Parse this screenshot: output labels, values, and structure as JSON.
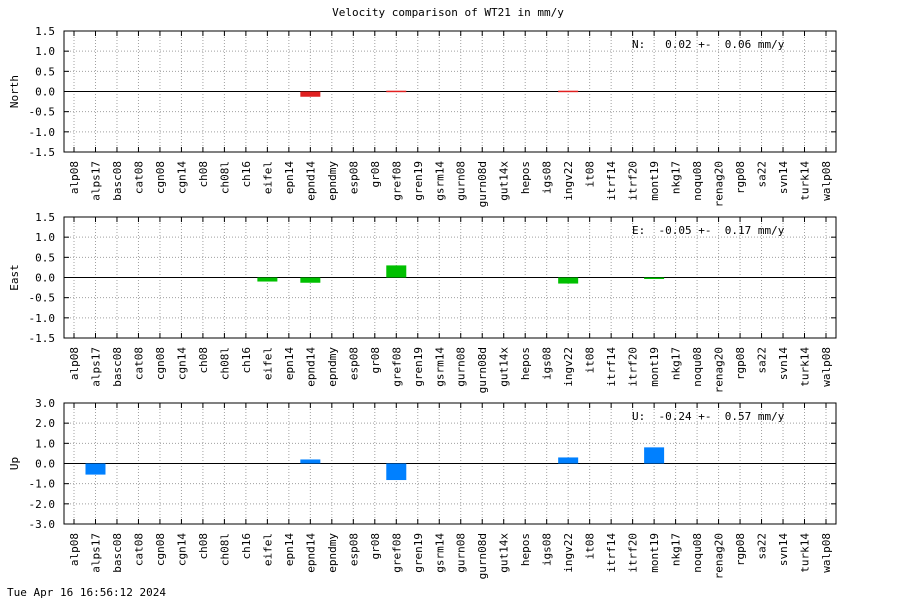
{
  "figure_title": "Velocity comparison of WT21 in mm/y",
  "timestamp": "Tue Apr 16 16:56:12 2024",
  "colors": {
    "north": "#e02020",
    "east": "#00c000",
    "up": "#0080ff",
    "grid": "#a0a0a0",
    "axis": "#000000"
  },
  "chart_data": [
    {
      "type": "bar",
      "ylabel": "North",
      "ylim": [
        -1.5,
        1.5
      ],
      "yticks": [
        "1.5",
        "1.0",
        "0.5",
        "0.0",
        "-0.5",
        "-1.0",
        "-1.5"
      ],
      "ytick_values": [
        1.5,
        1.0,
        0.5,
        0.0,
        -0.5,
        -1.0,
        -1.5
      ],
      "grid": true,
      "stat_text": "N:   0.02 +-  0.06 mm/y",
      "categories": [
        "alp08",
        "alps17",
        "basc08",
        "cat08",
        "cgn08",
        "cgn14",
        "ch08",
        "ch08l",
        "ch16",
        "eifel",
        "epn14",
        "epnd14",
        "epndmy",
        "esp08",
        "gr08",
        "gref08",
        "gren19",
        "gsrm14",
        "gurn08",
        "gurn08d",
        "gut14x",
        "hepos",
        "igs08",
        "ingv22",
        "it08",
        "itrf14",
        "itrf20",
        "mont19",
        "nkg17",
        "noqu08",
        "renag20",
        "rgp08",
        "sa22",
        "svn14",
        "turk14",
        "walp08"
      ],
      "values": [
        0,
        0,
        0,
        0,
        0,
        0,
        0,
        0,
        0,
        0,
        0,
        -0.13,
        0,
        0,
        0,
        0.02,
        0,
        0,
        0,
        0,
        0,
        0,
        0,
        0.02,
        0,
        0,
        0,
        0,
        0,
        0,
        0,
        0,
        0,
        0,
        0,
        0
      ]
    },
    {
      "type": "bar",
      "ylabel": "East",
      "ylim": [
        -1.5,
        1.5
      ],
      "yticks": [
        "1.5",
        "1.0",
        "0.5",
        "0.0",
        "-0.5",
        "-1.0",
        "-1.5"
      ],
      "ytick_values": [
        1.5,
        1.0,
        0.5,
        0.0,
        -0.5,
        -1.0,
        -1.5
      ],
      "grid": true,
      "stat_text": "E:  -0.05 +-  0.17 mm/y",
      "categories": [
        "alp08",
        "alps17",
        "basc08",
        "cat08",
        "cgn08",
        "cgn14",
        "ch08",
        "ch08l",
        "ch16",
        "eifel",
        "epn14",
        "epnd14",
        "epndmy",
        "esp08",
        "gr08",
        "gref08",
        "gren19",
        "gsrm14",
        "gurn08",
        "gurn08d",
        "gut14x",
        "hepos",
        "igs08",
        "ingv22",
        "it08",
        "itrf14",
        "itrf20",
        "mont19",
        "nkg17",
        "noqu08",
        "renag20",
        "rgp08",
        "sa22",
        "svn14",
        "turk14",
        "walp08"
      ],
      "values": [
        0,
        0,
        0,
        0,
        0,
        0,
        0,
        0,
        0,
        -0.1,
        0,
        -0.13,
        0,
        0,
        0,
        0.3,
        0,
        0,
        0,
        0,
        0,
        0,
        0,
        -0.15,
        0,
        0,
        0,
        -0.03,
        0,
        0,
        0,
        0,
        0,
        0,
        0,
        0
      ]
    },
    {
      "type": "bar",
      "ylabel": "Up",
      "ylim": [
        -3.0,
        3.0
      ],
      "yticks": [
        "3.0",
        "2.0",
        "1.0",
        "0.0",
        "-1.0",
        "-2.0",
        "-3.0"
      ],
      "ytick_values": [
        3.0,
        2.0,
        1.0,
        0.0,
        -1.0,
        -2.0,
        -3.0
      ],
      "grid": true,
      "stat_text": "U:  -0.24 +-  0.57 mm/y",
      "categories": [
        "alp08",
        "alps17",
        "basc08",
        "cat08",
        "cgn08",
        "cgn14",
        "ch08",
        "ch08l",
        "ch16",
        "eifel",
        "epn14",
        "epnd14",
        "epndmy",
        "esp08",
        "gr08",
        "gref08",
        "gren19",
        "gsrm14",
        "gurn08",
        "gurn08d",
        "gut14x",
        "hepos",
        "igs08",
        "ingv22",
        "it08",
        "itrf14",
        "itrf20",
        "mont19",
        "nkg17",
        "noqu08",
        "renag20",
        "rgp08",
        "sa22",
        "svn14",
        "turk14",
        "walp08"
      ],
      "values": [
        0,
        -0.55,
        0,
        0,
        0,
        0,
        0,
        0,
        0,
        0,
        0,
        0.2,
        0,
        0,
        0,
        -0.82,
        0,
        0,
        0,
        0,
        0,
        0,
        0,
        0.3,
        0,
        0,
        0,
        0.8,
        0,
        0,
        0,
        0,
        0,
        0,
        0,
        0
      ]
    }
  ]
}
